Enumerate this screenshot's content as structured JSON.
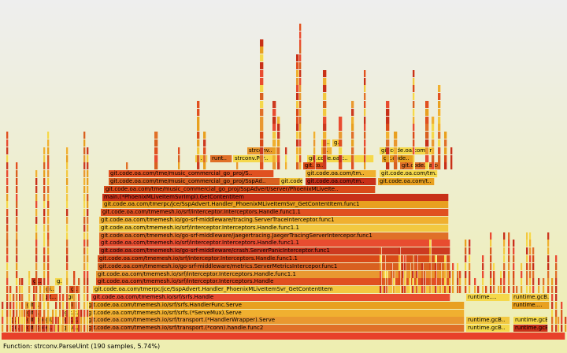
{
  "status": {
    "text": "Function: strconv.ParseUint (190 samples, 5.74%)"
  },
  "colors": {
    "bg_top": "#eeeeee",
    "bg_bottom": "#eeeeb0",
    "palette": [
      "#e05020",
      "#e8a020",
      "#d94a18",
      "#f0b030",
      "#c83018",
      "#e07028",
      "#f2c840",
      "#d86020",
      "#e84c30",
      "#f5d84a",
      "#cc3a20",
      "#e99830"
    ]
  },
  "flamegraph": {
    "frames": [
      {
        "label": "main.(*PhoenixMLiveItemSvrImpl).GetContentItem",
        "c": 4
      },
      {
        "label": "git.code.oa.com/tmerpc/jce/SspAdvert.Handler_PhoenixMLiveItemSvr_GetContentItem.func1",
        "c": 1
      },
      {
        "label": "git.code.oa.com/tmemesh.io/srf/interceptor.Interceptors.Handle.func1.1",
        "c": 0
      },
      {
        "label": "git.code.oa.com/tmemesh.io/go-srf-middleware/tracing.ServerTraceInterceptor.func1",
        "c": 3
      },
      {
        "label": "git.code.oa.com/tmemesh.io/srf/interceptor.Interceptors.Handle.func1.1",
        "c": 6
      },
      {
        "label": "git.code.oa.com/tmemesh.io/go-srf-middleware/jaegertracing.JaegerTracingServerIntercepor.func1",
        "c": 5
      },
      {
        "label": "git.code.oa.com/tmemesh.io/srf/interceptor.Interceptors.Handle.func1.1",
        "c": 8
      },
      {
        "label": "git.code.oa.com/tmemesh.io/go-srf-middleware/crash.ServerPanicInterceptor.func1",
        "c": 10
      },
      {
        "label": "git.code.oa.com/tmemesh.io/srf/interceptor.Interceptors.Handle.func1.1",
        "c": 2
      },
      {
        "label": "git.code.oa.com/tmemesh.io/go-srf-middleware/metrics.ServerMetricsIntercepor.func1",
        "c": 7
      },
      {
        "label": "git.code.oa.com/tmemesh.io/srf/interceptor.Interceptors.Handle.func1.1",
        "c": 11
      },
      {
        "label": "git.code.oa.com/tmemesh.io/srf/interceptor.Interceptors.Handle",
        "c": 0
      },
      {
        "label": "git.code.oa.com/tmerpc/jce/SspAdvert.Handler_PhoenixMLiveItemSvr_GetContentItem",
        "c": 6
      },
      {
        "label": "git.code.oa.com/tmemesh.io/srf/srfs.Handle",
        "c": 8
      },
      {
        "label": "git.code.oa.com/tmemesh.io/srf/srfs.HandlerFunc.Serve",
        "c": 1
      },
      {
        "label": "git.code.oa.com/tmemesh.io/srf/srfs.(*ServeMux).Serve",
        "c": 3
      },
      {
        "label": "git.code.oa.com/tmemesh.io/srf/transport.(*HandlerWrapper).Serve",
        "c": 11
      },
      {
        "label": "git.code.oa.com/tmemesh.io/srf/transport.(*conn).handle.func2",
        "c": 5
      },
      {
        "label": "git.code.oa.com/tme/music_commercial_go_proj/SspAdvert/server/PhoenixMLiveIte..",
        "c": 2
      },
      {
        "label": "git.code.oa.com/tme/music_commercial_go_proj/SspAd..",
        "c": 7
      },
      {
        "label": "git.code.oa.com/tme/music_commercial_go_proj/S..",
        "c": 0
      },
      {
        "label": "git.code.oa..",
        "c": 6
      },
      {
        "label": "git.code.oa.com/tm..",
        "c": 3
      },
      {
        "label": "git.code.oa.com/t..",
        "c": 1
      },
      {
        "label": "git.code.oa.com/tm..",
        "c": 9
      },
      {
        "label": "git.code.oa.com/..",
        "c": 5
      },
      {
        "label": "git.code.oa.com/tm..",
        "c": 4
      },
      {
        "label": "git.co..",
        "c": 2
      },
      {
        "label": "git.code.oa.c..",
        "c": 9
      },
      {
        "label": "git.code..",
        "c": 1
      },
      {
        "label": "r..",
        "c": 6
      },
      {
        "label": "runt..",
        "c": 5
      },
      {
        "label": "strconv.Par..",
        "c": 9
      },
      {
        "label": "strconv..",
        "c": 11
      },
      {
        "label": "r..",
        "c": 3
      },
      {
        "label": "g..",
        "c": 6
      },
      {
        "label": "g..",
        "c": 9
      },
      {
        "label": "runtime....",
        "c": 9
      },
      {
        "label": "runtime.gcB..",
        "c": 6
      },
      {
        "label": "runtime.gcB..",
        "c": 9
      },
      {
        "label": "runtime.gcB..",
        "c": 6
      },
      {
        "label": "runtime....",
        "c": 1
      },
      {
        "label": "runtime.gcB..",
        "c": 9
      },
      {
        "label": "runtime.gcB..",
        "c": 4
      },
      {
        "label": "git.code..",
        "c": 10
      },
      {
        "label": "git.code..",
        "c": 2
      },
      {
        "label": "git.c..",
        "c": 1
      },
      {
        "label": "git.c..",
        "c": 4
      },
      {
        "label": "git.c..",
        "c": 9
      },
      {
        "label": "git...",
        "c": 5
      },
      {
        "label": "git...",
        "c": 11
      },
      {
        "label": "git...",
        "c": 0
      },
      {
        "label": "gi..",
        "c": 3
      },
      {
        "label": "gi..",
        "c": 7
      },
      {
        "label": "gi..",
        "c": 6
      },
      {
        "label": "g..",
        "c": 2
      },
      {
        "label": "gi..",
        "c": 1
      },
      {
        "label": "gi..",
        "c": 8
      },
      {
        "label": "g..",
        "c": 10
      },
      {
        "label": "g..",
        "c": 9
      },
      {
        "label": "gi..",
        "c": 4
      },
      {
        "label": "git.code.oa.com/tm..",
        "c": 9
      }
    ]
  }
}
